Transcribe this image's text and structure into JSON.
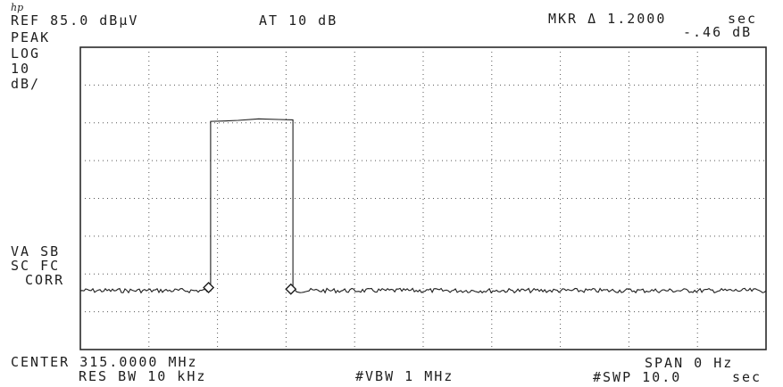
{
  "logo": "hp",
  "header": {
    "ref": "REF 85.0 dBμV",
    "atten": "AT 10 dB",
    "marker_label": "MKR Δ 1.2000",
    "marker_time_unit": "sec",
    "marker_level": "-.46 dB"
  },
  "left_labels": {
    "detector": "PEAK",
    "scale_type": "LOG",
    "scale_value": "10",
    "scale_unit": "dB/",
    "flags_1": "VA SB",
    "flags_2": "SC FC",
    "flags_3": "CORR"
  },
  "footer": {
    "center": "CENTER 315.0000 MHz",
    "res_bw": "RES BW 10 kHz",
    "vbw": "#VBW 1 MHz",
    "span": "SPAN 0 Hz",
    "sweep": "#SWP 10.0",
    "sweep_unit": "sec"
  },
  "chart_data": {
    "type": "line",
    "x_unit": "sec",
    "xlim": [
      0,
      10
    ],
    "ylim": [
      -15,
      85
    ],
    "y_unit": "dBμV",
    "grid": true,
    "grid_divisions": {
      "x": 10,
      "y": 8
    },
    "noise_floor": 4.5,
    "series": [
      {
        "x": [
          0,
          1.9,
          1.9,
          2.1,
          2.3,
          2.6,
          2.9,
          3.1,
          3.1,
          10
        ],
        "y": [
          4.5,
          4.5,
          60.5,
          60.6,
          60.8,
          61.3,
          61.1,
          61.0,
          4.5,
          4.5
        ]
      }
    ],
    "markers": [
      {
        "x": 1.87,
        "y": 5.5
      },
      {
        "x": 3.07,
        "y": 5.0
      }
    ]
  }
}
